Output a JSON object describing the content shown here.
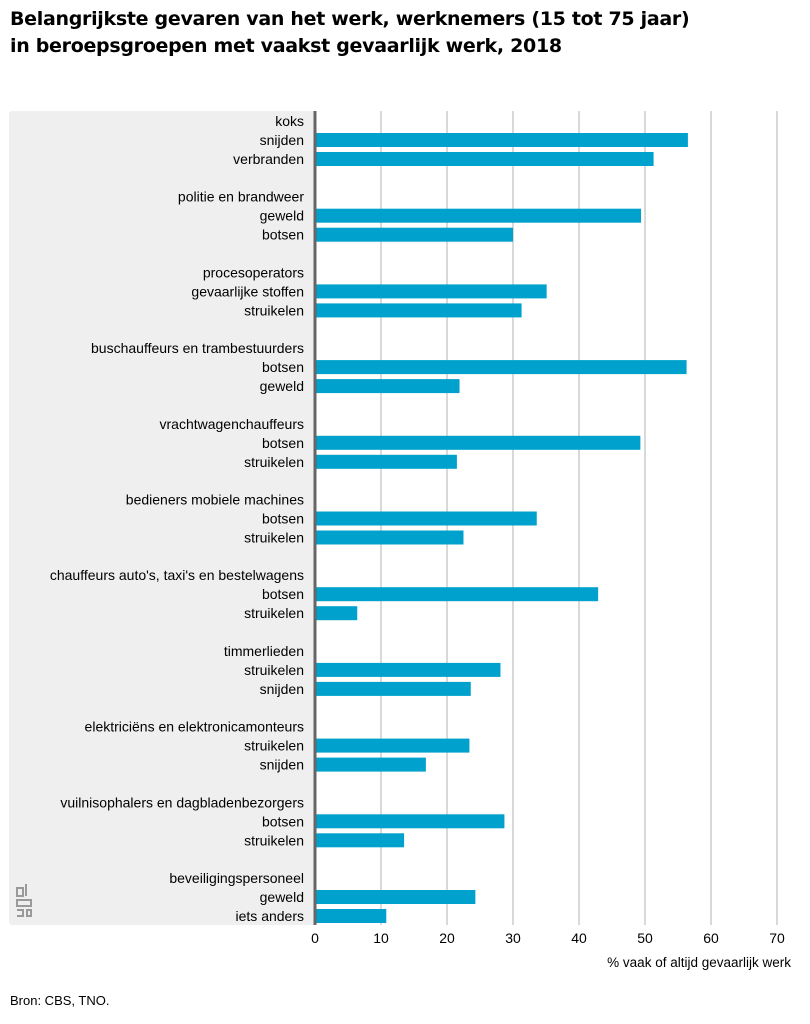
{
  "title_lines": [
    "Belangrijkste gevaren van het werk, werknemers (15 tot 75 jaar)",
    "in beroepsgroepen met vaakst gevaarlijk werk, 2018"
  ],
  "source": "Bron: CBS, TNO.",
  "logo_icon": "cbs-logo-icon",
  "colors": {
    "bar": "#00a1cd",
    "panel": "#efefef",
    "grid": "#b3b3b3",
    "axis": "#666666"
  },
  "chart_data": {
    "type": "bar",
    "orientation": "horizontal",
    "title": "Belangrijkste gevaren van het werk, werknemers (15 tot 75 jaar) in beroepsgroepen met vaakst gevaarlijk werk, 2018",
    "xlabel": "% vaak of altijd gevaarlijk werk",
    "ylabel": "",
    "xlim": [
      0,
      70
    ],
    "xticks": [
      0,
      10,
      20,
      30,
      40,
      50,
      60,
      70
    ],
    "grid": "vertical",
    "groups": [
      {
        "name": "koks",
        "items": [
          {
            "label": "snijden",
            "value": 56.5
          },
          {
            "label": "verbranden",
            "value": 51.3
          }
        ]
      },
      {
        "name": "politie en brandweer",
        "items": [
          {
            "label": "geweld",
            "value": 49.4
          },
          {
            "label": "botsen",
            "value": 30.0
          }
        ]
      },
      {
        "name": "procesoperators",
        "items": [
          {
            "label": "gevaarlijke stoffen",
            "value": 35.1
          },
          {
            "label": "struikelen",
            "value": 31.3
          }
        ]
      },
      {
        "name": "buschauffeurs en trambestuurders",
        "items": [
          {
            "label": "botsen",
            "value": 56.3
          },
          {
            "label": "geweld",
            "value": 21.9
          }
        ]
      },
      {
        "name": "vrachtwagenchauffeurs",
        "items": [
          {
            "label": "botsen",
            "value": 49.3
          },
          {
            "label": "struikelen",
            "value": 21.5
          }
        ]
      },
      {
        "name": "bedieners mobiele machines",
        "items": [
          {
            "label": "botsen",
            "value": 33.6
          },
          {
            "label": "struikelen",
            "value": 22.5
          }
        ]
      },
      {
        "name": "chauffeurs auto's, taxi's en bestelwagens",
        "items": [
          {
            "label": "botsen",
            "value": 42.9
          },
          {
            "label": "struikelen",
            "value": 6.4
          }
        ]
      },
      {
        "name": "timmerlieden",
        "items": [
          {
            "label": "struikelen",
            "value": 28.1
          },
          {
            "label": "snijden",
            "value": 23.6
          }
        ]
      },
      {
        "name": "elektriciëns en elektronicamonteurs",
        "items": [
          {
            "label": "struikelen",
            "value": 23.4
          },
          {
            "label": "snijden",
            "value": 16.8
          }
        ]
      },
      {
        "name": "vuilnisophalers en dagbladenbezorgers",
        "items": [
          {
            "label": "botsen",
            "value": 28.7
          },
          {
            "label": "struikelen",
            "value": 13.5
          }
        ]
      },
      {
        "name": "beveiligingspersoneel",
        "items": [
          {
            "label": "geweld",
            "value": 24.3
          },
          {
            "label": "iets anders",
            "value": 10.8
          }
        ]
      }
    ]
  }
}
